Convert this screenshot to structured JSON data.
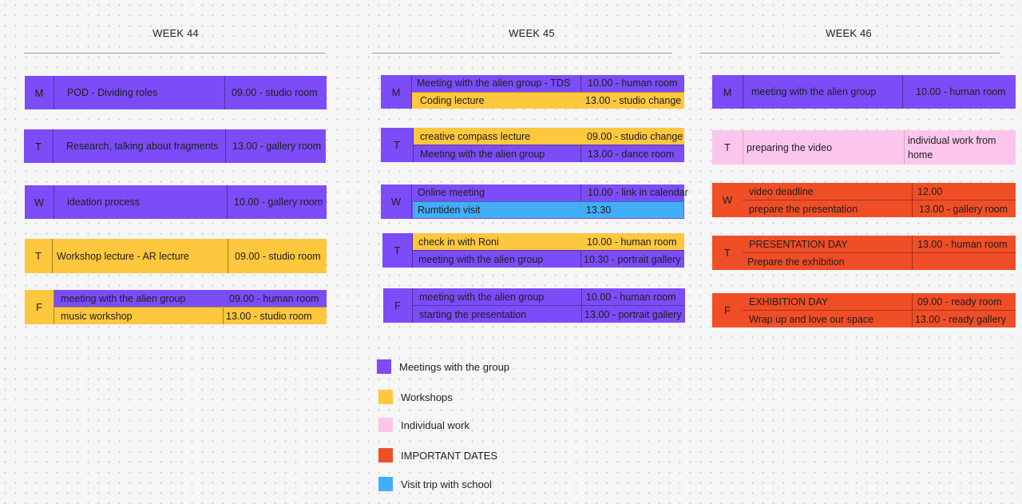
{
  "weeks": [
    {
      "title": "WEEK 44",
      "days": [
        {
          "letter": "M",
          "rows": [
            {
              "activity": "POD - Dividing roles",
              "time": "09.00 - studio room",
              "color": "#7b4cf7"
            }
          ]
        },
        {
          "letter": "T",
          "rows": [
            {
              "activity": "Research, talking about fragments",
              "time": "13.00 - gallery room",
              "color": "#7b4cf7"
            }
          ]
        },
        {
          "letter": "W",
          "rows": [
            {
              "activity": "ideation process",
              "time": "10.00 - gallery room",
              "color": "#7b4cf7"
            }
          ]
        },
        {
          "letter": "T",
          "rows": [
            {
              "activity": "Workshop lecture - AR lecture",
              "time": "09.00 - studio room",
              "color": "#fdc73e"
            }
          ]
        },
        {
          "letter": "F",
          "rows": [
            {
              "activity": "meeting with the alien group",
              "time": "09.00 - human room",
              "color": "#7b4cf7"
            },
            {
              "activity": "music workshop",
              "time": "13.00 - studio room",
              "color": "#fdc73e"
            }
          ]
        }
      ]
    },
    {
      "title": "WEEK 45",
      "days": [
        {
          "letter": "M",
          "rows": [
            {
              "activity": "Meeting with the alien group - TDS",
              "time": "10.00 - human room",
              "color": "#7b4cf7"
            },
            {
              "activity": "Coding lecture",
              "time": "13.00 - studio change",
              "color": "#fdc73e"
            }
          ]
        },
        {
          "letter": "T",
          "rows": [
            {
              "activity": "creative  compass lecture",
              "time": "09.00 - studio change",
              "color": "#fdc73e"
            },
            {
              "activity": "Meeting with the alien group",
              "time": "13.00 - dance room",
              "color": "#7b4cf7"
            }
          ]
        },
        {
          "letter": "W",
          "rows": [
            {
              "activity": "Online meeting",
              "time": "10.00 - link in calendar",
              "color": "#7b4cf7"
            },
            {
              "activity": "Rumtiden visit",
              "time": "13.30",
              "color": "#43aef5"
            }
          ]
        },
        {
          "letter": "T",
          "rows": [
            {
              "activity": "check in with Roni",
              "time": "10.00 - human room",
              "color": "#fdc73e"
            },
            {
              "activity": "meeting with the alien group",
              "time": "10.30 - portrait gallery",
              "color": "#7b4cf7"
            }
          ]
        },
        {
          "letter": "F",
          "rows": [
            {
              "activity": "meeting with the alien group",
              "time": "10.00 - human room",
              "color": "#7b4cf7"
            },
            {
              "activity": "starting the presentation",
              "time": "13.00 - portrait gallery",
              "color": "#7b4cf7"
            }
          ]
        }
      ]
    },
    {
      "title": "WEEK 46",
      "days": [
        {
          "letter": "M",
          "rows": [
            {
              "activity": "meeting with the alien group",
              "time": "10.00 - human room",
              "color": "#7b4cf7"
            }
          ]
        },
        {
          "letter": "T",
          "rows": [
            {
              "activity": "preparing the video",
              "time": "individual work from home",
              "color": "#fcc6ec"
            }
          ]
        },
        {
          "letter": "W",
          "rows": [
            {
              "activity": "video deadline",
              "time": "12.00",
              "color": "#f04e27"
            },
            {
              "activity": "prepare the presentation",
              "time": "13.00 - gallery room",
              "color": "#f04e27"
            }
          ]
        },
        {
          "letter": "T",
          "rows": [
            {
              "activity": "PRESENTATION DAY",
              "time": "13.00 - human room",
              "color": "#f04e27"
            },
            {
              "activity": "Prepare the exhibition",
              "time": "",
              "color": "#f04e27"
            }
          ]
        },
        {
          "letter": "F",
          "rows": [
            {
              "activity": "EXHIBITION DAY",
              "time": "09.00 - ready room",
              "color": "#f04e27"
            },
            {
              "activity": "Wrap up and love our space",
              "time": "13.00 - ready gallery",
              "color": "#f04e27"
            }
          ]
        }
      ]
    }
  ],
  "legend": [
    {
      "label": "Meetings with the group",
      "color": "#7b4cf7"
    },
    {
      "label": "Workshops",
      "color": "#fdc73e"
    },
    {
      "label": "Individual work",
      "color": "#fcc6ec"
    },
    {
      "label": "IMPORTANT DATES",
      "color": "#f04e27"
    },
    {
      "label": "Visit trip with school",
      "color": "#43aef5"
    }
  ]
}
